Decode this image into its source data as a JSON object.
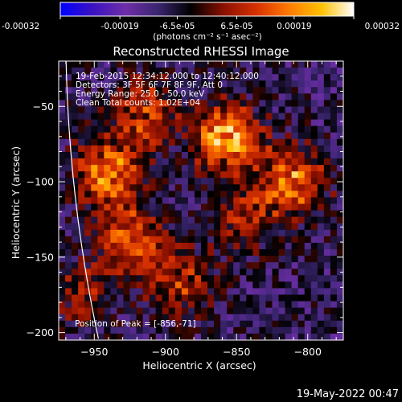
{
  "chart_data": {
    "type": "heatmap",
    "title": "Reconstructed RHESSI Image",
    "xlabel": "Heliocentric X (arcsec)",
    "ylabel": "Heliocentric Y (arcsec)",
    "xlim": [
      -975,
      -775
    ],
    "ylim": [
      -205,
      -20
    ],
    "x_ticks": [
      -950,
      -900,
      -850,
      -800
    ],
    "y_ticks": [
      -50,
      -100,
      -150,
      -200
    ],
    "colorbar": {
      "range": [
        -0.00032,
        0.00032
      ],
      "tick_values": [
        -0.00032,
        -0.00019,
        -6.5e-05,
        6.5e-05,
        0.00019,
        0.00032
      ],
      "tick_labels": [
        "-0.00032",
        "-0.00019",
        "-6.5e-05",
        "6.5e-05",
        "0.00019",
        "0.00032"
      ],
      "unit_label": "(photons cm⁻² s⁻¹ asec⁻²)",
      "colors": [
        "#0000ff",
        "#3c12c0",
        "#6e2ea8",
        "#3a2570",
        "#000000",
        "#8a1000",
        "#d63000",
        "#ff7a00",
        "#ffc000",
        "#ffffff"
      ]
    },
    "annotations": [
      "19-Feb-2015 12:34:12.000 to 12:40:12.000",
      "Detectors: 3F 5F 6F 7F 8F 9F, Att 0",
      "Energy Range: 25.0 - 50.0 keV",
      "Clean    Total counts: 1.02E+04"
    ],
    "peak": {
      "label": "Position of Peak = [-856,-71]",
      "x": -856,
      "y": -71
    },
    "sources": [
      {
        "x": -941,
        "y": -95,
        "intensity": 0.00028
      },
      {
        "x": -856,
        "y": -71,
        "intensity": 0.00032
      },
      {
        "x": -915,
        "y": -55,
        "intensity": 0.0002
      },
      {
        "x": -810,
        "y": -100,
        "intensity": 0.00026
      },
      {
        "x": -925,
        "y": -140,
        "intensity": 0.00022
      },
      {
        "x": -890,
        "y": -165,
        "intensity": 0.00018
      },
      {
        "x": -845,
        "y": -125,
        "intensity": 0.00015
      },
      {
        "x": -960,
        "y": -175,
        "intensity": 0.00012
      }
    ],
    "grid": false
  },
  "footer": {
    "date": "19-May-2022 00:47"
  }
}
